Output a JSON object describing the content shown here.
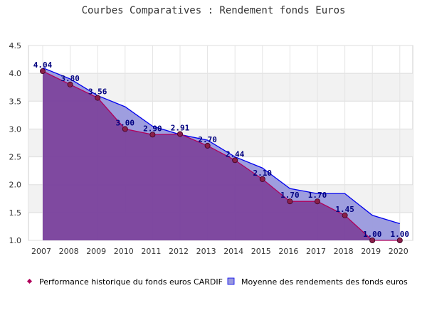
{
  "chart_data": {
    "type": "area",
    "title": "Courbes Comparatives : Rendement fonds Euros",
    "xlabel": "",
    "ylabel": "",
    "categories": [
      "2007",
      "2008",
      "2009",
      "2010",
      "2011",
      "2012",
      "2013",
      "2014",
      "2015",
      "2016",
      "2017",
      "2018",
      "2019",
      "2020"
    ],
    "ylim": [
      1.0,
      4.5
    ],
    "yticks": [
      "1.0",
      "1.5",
      "2.0",
      "2.5",
      "3.0",
      "3.5",
      "4.0",
      "4.5"
    ],
    "grid": "horizontal bands",
    "legend_position": "bottom",
    "series": [
      {
        "name": "Performance historique du fonds euros CARDIF",
        "values": [
          4.04,
          3.8,
          3.56,
          3.0,
          2.9,
          2.91,
          2.7,
          2.44,
          2.1,
          1.7,
          1.7,
          1.45,
          1.0,
          1.0
        ],
        "labels": [
          "4.04",
          "3.80",
          "3.56",
          "3.00",
          "2.90",
          "2.91",
          "2.70",
          "2.44",
          "2.10",
          "1.70",
          "1.70",
          "1.45",
          "1.00",
          "1.00"
        ],
        "line_color": "#b0005a",
        "fill_color": "#7b3f99",
        "marker_color": "#8a1f4a"
      },
      {
        "name": "Moyenne des rendements des fonds euros",
        "values": [
          4.1,
          3.9,
          3.6,
          3.4,
          3.05,
          2.9,
          2.8,
          2.5,
          2.3,
          1.93,
          1.84,
          1.84,
          1.45,
          1.3
        ],
        "line_color": "#0000ee",
        "fill_color": "#9999dd"
      }
    ]
  }
}
